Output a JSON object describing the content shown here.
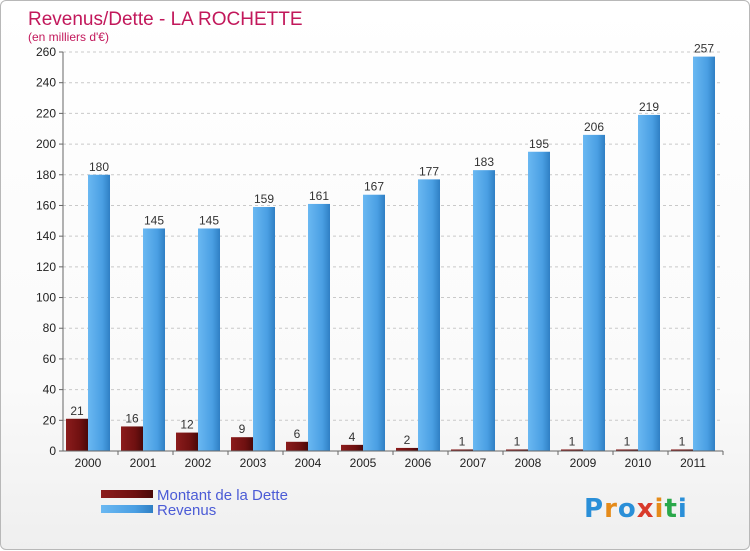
{
  "chart_data": {
    "type": "bar",
    "title": "Revenus/Dette - LA ROCHETTE",
    "subtitle": "(en milliers d'€)",
    "categories": [
      "2000",
      "2001",
      "2002",
      "2003",
      "2004",
      "2005",
      "2006",
      "2007",
      "2008",
      "2009",
      "2010",
      "2011"
    ],
    "series": [
      {
        "name": "Montant de la Dette",
        "color": "#7a1313",
        "values": [
          21,
          16,
          12,
          9,
          6,
          4,
          2,
          1,
          1,
          1,
          1,
          1
        ]
      },
      {
        "name": "Revenus",
        "color": "#4ba3e6",
        "values": [
          180,
          145,
          145,
          159,
          161,
          167,
          177,
          183,
          195,
          206,
          219,
          257
        ]
      }
    ],
    "ylim": [
      0,
      260
    ],
    "ytick_step": 20,
    "grid": true,
    "legend_position": "bottom-left"
  },
  "brand": {
    "logo_text": "Proxiti"
  }
}
